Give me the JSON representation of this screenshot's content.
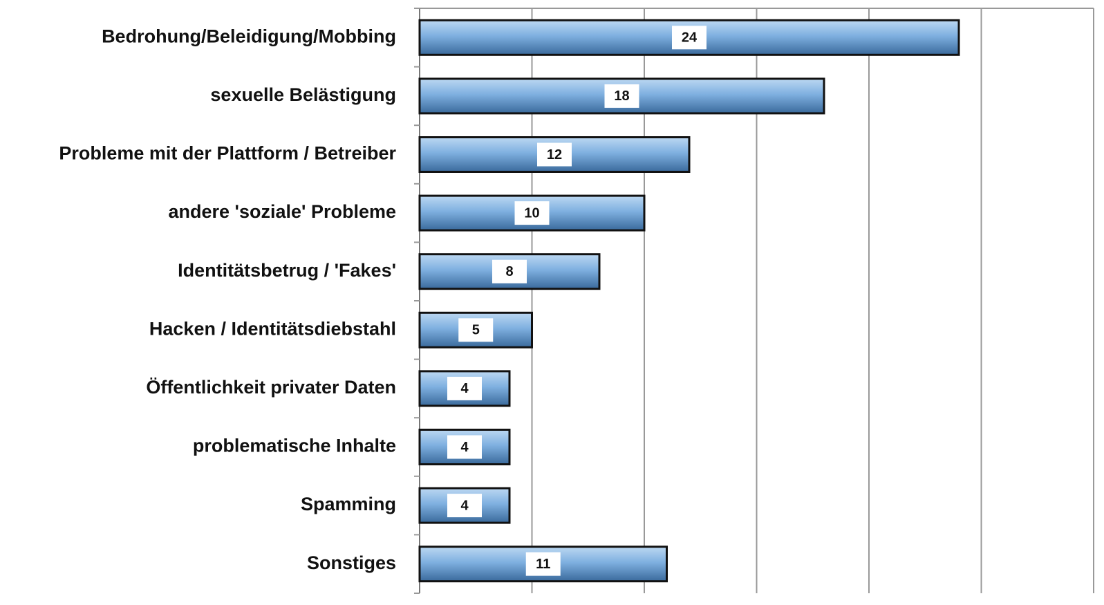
{
  "chart_data": {
    "type": "bar",
    "orientation": "horizontal",
    "categories": [
      "Bedrohung/Beleidigung/Mobbing",
      "sexuelle Belästigung",
      "Probleme mit der Plattform / Betreiber",
      "andere 'soziale' Probleme",
      "Identitätsbetrug / 'Fakes'",
      "Hacken / Identitätsdiebstahl",
      "Öffentlichkeit privater Daten",
      "problematische Inhalte",
      "Spamming",
      "Sonstiges"
    ],
    "values": [
      24,
      18,
      12,
      10,
      8,
      5,
      4,
      4,
      4,
      11
    ],
    "color": "#5b8fc7",
    "xlim": [
      0,
      30
    ],
    "xticks": [
      0,
      5,
      10,
      15,
      20,
      25,
      30
    ],
    "grid": true
  }
}
